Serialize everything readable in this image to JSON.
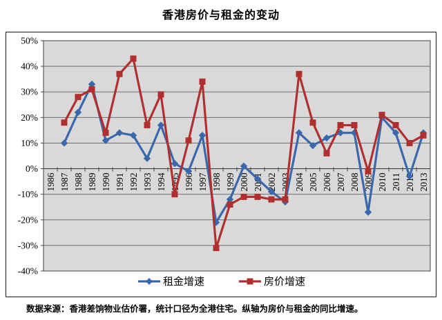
{
  "title": "香港房价与租金的变动",
  "footer": {
    "text": "数据来源：香港差饷物业估价署，统计口径为全港住宅。纵轴为房价与租金的同比增速。"
  },
  "colors": {
    "rent_series": "#3A68AC",
    "price_series": "#B03030",
    "plot_background": "#D9D9D9",
    "gridline": "#6E6E6E",
    "axis": "#404040"
  },
  "chart_data": {
    "type": "line",
    "title": "香港房价与租金的变动",
    "categories": [
      1986,
      1987,
      1988,
      1989,
      1990,
      1991,
      1992,
      1993,
      1994,
      1995,
      1996,
      1997,
      1998,
      1999,
      2000,
      2001,
      2002,
      2003,
      2004,
      2005,
      2006,
      2007,
      2008,
      2009,
      2010,
      2011,
      2012,
      2013
    ],
    "series": [
      {
        "name": "租金增速",
        "color": "#3A68AC",
        "marker": "diamond",
        "values": [
          null,
          10,
          22,
          33,
          11,
          14,
          13,
          4,
          17,
          2,
          -1,
          13,
          -21,
          -12,
          1,
          -4,
          -9,
          -13,
          14,
          9,
          12,
          14,
          14,
          -17,
          20,
          14,
          -3,
          14
        ]
      },
      {
        "name": "房价增速",
        "color": "#B03030",
        "marker": "square",
        "values": [
          null,
          18,
          28,
          31,
          14,
          37,
          43,
          17,
          29,
          -10,
          11,
          34,
          -31,
          -14,
          -11,
          -11,
          -12,
          -12,
          37,
          18,
          6,
          17,
          17,
          -1,
          21,
          17,
          10,
          13
        ]
      }
    ],
    "xlabel": "",
    "ylabel": "",
    "ylim": [
      -40,
      50
    ],
    "ytick_step": 10,
    "ytick_labels": [
      "50%",
      "40%",
      "30%",
      "20%",
      "10%",
      "0%",
      "-10%",
      "-20%",
      "-30%",
      "-40%"
    ],
    "grid": true,
    "legend_position": "bottom",
    "plot_bg": "#D9D9D9",
    "notes": "values are percent year-on-year growth; no data plotted for 1986"
  }
}
